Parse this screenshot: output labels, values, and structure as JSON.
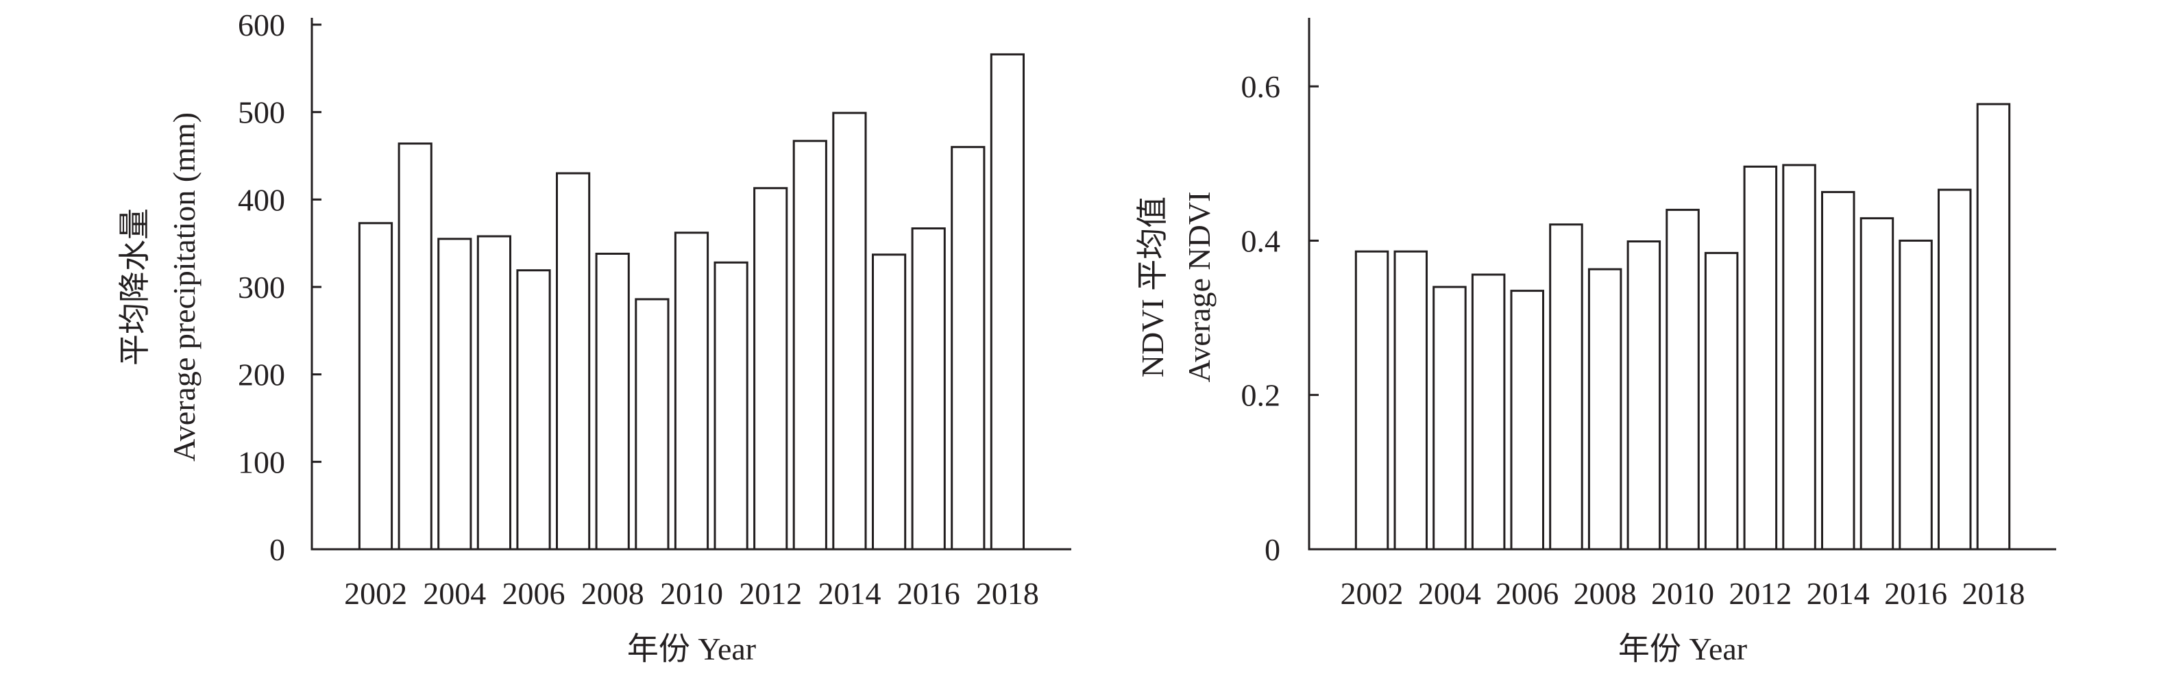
{
  "chart_data": [
    {
      "type": "bar",
      "title": "",
      "xlabel": "年份 Year",
      "ylabel_lines": [
        "平均降水量",
        "Average precipitation (mm)"
      ],
      "categories": [
        "2002",
        "2003",
        "2004",
        "2005",
        "2006",
        "2007",
        "2008",
        "2009",
        "2010",
        "2011",
        "2012",
        "2013",
        "2014",
        "2015",
        "2016",
        "2017",
        "2018"
      ],
      "tick_labels_x": [
        "2002",
        "2004",
        "2006",
        "2008",
        "2010",
        "2012",
        "2014",
        "2016",
        "2018"
      ],
      "values": [
        373,
        464,
        355,
        358,
        319,
        430,
        338,
        286,
        362,
        328,
        413,
        467,
        499,
        337,
        367,
        460,
        566
      ],
      "ylim": [
        0,
        600
      ],
      "yticks": [
        0,
        100,
        200,
        300,
        400,
        500,
        600
      ],
      "grid": false
    },
    {
      "type": "bar",
      "title": "",
      "xlabel": "年份 Year",
      "ylabel_lines": [
        "NDVI 平均值",
        "Average NDVI"
      ],
      "categories": [
        "2002",
        "2003",
        "2004",
        "2005",
        "2006",
        "2007",
        "2008",
        "2009",
        "2010",
        "2011",
        "2012",
        "2013",
        "2014",
        "2015",
        "2016",
        "2017",
        "2018"
      ],
      "tick_labels_x": [
        "2002",
        "2004",
        "2006",
        "2008",
        "2010",
        "2012",
        "2014",
        "2016",
        "2018"
      ],
      "values": [
        0.386,
        0.386,
        0.34,
        0.356,
        0.335,
        0.421,
        0.363,
        0.399,
        0.44,
        0.384,
        0.496,
        0.498,
        0.463,
        0.429,
        0.4,
        0.466,
        0.577
      ],
      "ylim": [
        0,
        0.68
      ],
      "yticks": [
        0,
        0.2,
        0.4,
        0.6
      ],
      "ytick_labels": [
        "0",
        "0.2",
        "0.4",
        "0.6"
      ],
      "grid": false
    }
  ]
}
